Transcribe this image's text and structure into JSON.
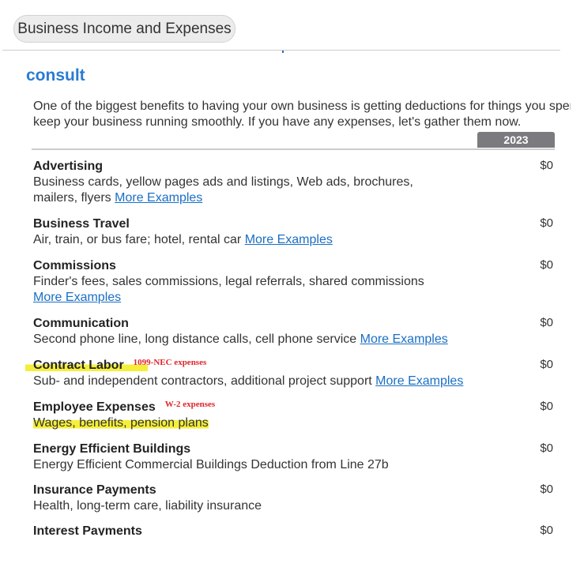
{
  "header": {
    "section_button": "Business Income and Expenses"
  },
  "page": {
    "title": "consult",
    "intro": [
      "One of the biggest benefits to having your own business is getting deductions for things you spent m",
      "keep your business running smoothly. If you have any expenses, let's gather them now."
    ],
    "year": "2023",
    "more_label": "More Examples"
  },
  "rows": [
    {
      "name": "Advertising",
      "desc": "Business cards, yellow pages ads and listings, Web ads, brochures, mailers, flyers",
      "value": "$0"
    },
    {
      "name": "Business Travel",
      "desc": "Air, train, or bus fare; hotel, rental car",
      "value": "$0"
    },
    {
      "name": "Commissions",
      "desc": "Finder's fees, sales commissions, legal referrals, shared commissions ",
      "value": "$0"
    },
    {
      "name": "Communication",
      "desc": "Second phone line, long distance calls, cell phone service",
      "value": "$0"
    },
    {
      "name": "Contract Labor",
      "note": "1099-NEC expenses",
      "desc": "Sub- and independent contractors, additional project support ",
      "value": "$0"
    },
    {
      "name": "Employee Expenses",
      "note": "W-2 expenses",
      "desc": "Wages, benefits, pension plans",
      "value": "$0"
    },
    {
      "name": "Energy Efficient Buildings",
      "desc": "Energy Efficient Commercial Buildings Deduction from Line 27b",
      "value": "$0"
    },
    {
      "name": "Insurance Payments",
      "desc": "Health, long-term care, liability insurance",
      "value": "$0"
    },
    {
      "name": "Interest Payments",
      "value": "$0"
    }
  ],
  "colors": {
    "link": "#1a6fc4",
    "title": "#2a7bd4",
    "highlight": "#f5ef3a",
    "annotation": "#e0242a"
  }
}
